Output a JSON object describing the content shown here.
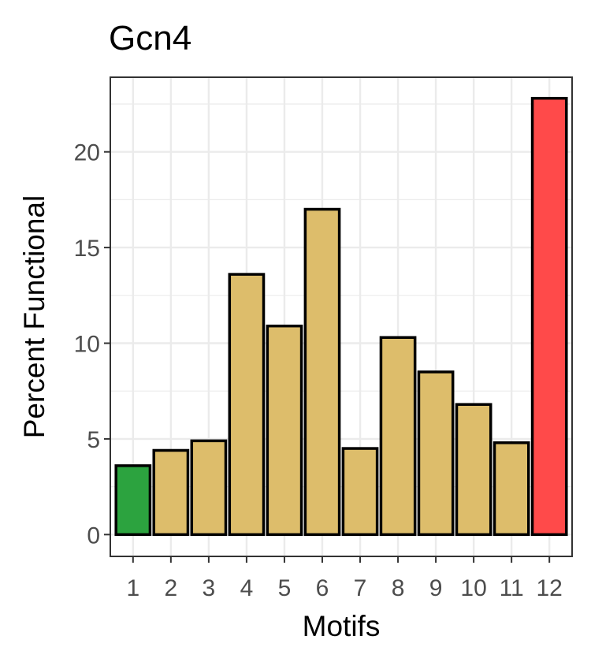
{
  "chart_data": {
    "type": "bar",
    "title": "Gcn4",
    "xlabel": "Motifs",
    "ylabel": "Percent Functional",
    "categories": [
      "1",
      "2",
      "3",
      "4",
      "5",
      "6",
      "7",
      "8",
      "9",
      "10",
      "11",
      "12"
    ],
    "values": [
      3.6,
      4.4,
      4.9,
      13.6,
      10.9,
      17.0,
      4.5,
      10.3,
      8.5,
      6.8,
      4.8,
      22.8
    ],
    "ylim": [
      -1.14,
      23.9
    ],
    "yticks": [
      0,
      5,
      10,
      15,
      20
    ],
    "grid": true,
    "legend": "none",
    "colors": {
      "default": "#DDBD6B",
      "highlight_low": "#2CA33F",
      "highlight_high": "#FF4A4A",
      "bar_outline": "#000000",
      "grid": "#EBEBEB",
      "panel_border": "#333333",
      "tick_text": "#4D4D4D"
    },
    "bar_colors": [
      "#2CA33F",
      "#DDBD6B",
      "#DDBD6B",
      "#DDBD6B",
      "#DDBD6B",
      "#DDBD6B",
      "#DDBD6B",
      "#DDBD6B",
      "#DDBD6B",
      "#DDBD6B",
      "#DDBD6B",
      "#FF4A4A"
    ]
  }
}
